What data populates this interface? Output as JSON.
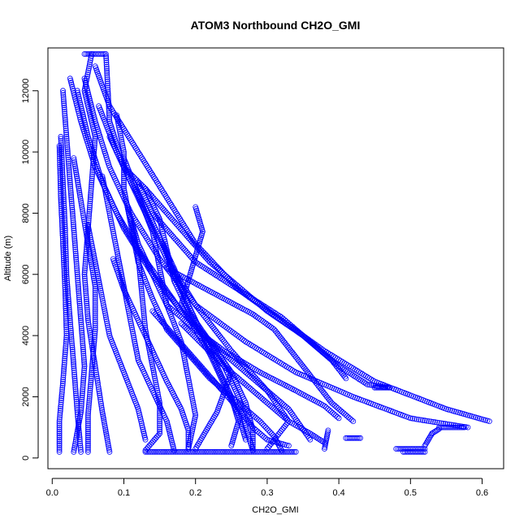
{
  "chart_data": {
    "type": "scatter",
    "title": "ATOM3 Northbound CH2O_GMI",
    "xlabel": "CH2O_GMI",
    "ylabel": "Altitude (m)",
    "xlim": [
      -0.006,
      0.63
    ],
    "ylim": [
      -350,
      13400
    ],
    "x_ticks": [
      "0.0",
      "0.1",
      "0.2",
      "0.3",
      "0.4",
      "0.5",
      "0.6"
    ],
    "y_ticks": [
      "0",
      "2000",
      "4000",
      "6000",
      "8000",
      "10000",
      "12000"
    ],
    "marker": "open-circle",
    "point_color": "#0000ff",
    "grid": false,
    "profiles": [
      [
        [
          0.055,
          13200
        ],
        [
          0.045,
          12000
        ],
        [
          0.06,
          10500
        ],
        [
          0.055,
          9000
        ],
        [
          0.05,
          7500
        ],
        [
          0.045,
          6000
        ],
        [
          0.05,
          4500
        ],
        [
          0.06,
          3000
        ],
        [
          0.07,
          1500
        ],
        [
          0.08,
          200
        ]
      ],
      [
        [
          0.075,
          13200
        ],
        [
          0.08,
          11000
        ],
        [
          0.1,
          9500
        ],
        [
          0.13,
          8000
        ],
        [
          0.16,
          6500
        ],
        [
          0.2,
          5000
        ],
        [
          0.25,
          3500
        ],
        [
          0.3,
          2200
        ],
        [
          0.33,
          1200
        ],
        [
          0.3,
          300
        ]
      ],
      [
        [
          0.06,
          12800
        ],
        [
          0.08,
          11500
        ],
        [
          0.12,
          10000
        ],
        [
          0.16,
          8500
        ],
        [
          0.2,
          7000
        ],
        [
          0.26,
          5500
        ],
        [
          0.32,
          4500
        ],
        [
          0.38,
          3500
        ],
        [
          0.45,
          2500
        ],
        [
          0.55,
          1600
        ],
        [
          0.61,
          1200
        ]
      ],
      [
        [
          0.045,
          12400
        ],
        [
          0.06,
          11000
        ],
        [
          0.08,
          9500
        ],
        [
          0.11,
          8000
        ],
        [
          0.15,
          6500
        ],
        [
          0.2,
          5000
        ],
        [
          0.27,
          3800
        ],
        [
          0.34,
          2800
        ],
        [
          0.42,
          2000
        ],
        [
          0.5,
          1300
        ],
        [
          0.58,
          1000
        ]
      ],
      [
        [
          0.035,
          12000
        ],
        [
          0.05,
          10500
        ],
        [
          0.07,
          9000
        ],
        [
          0.1,
          7500
        ],
        [
          0.14,
          6000
        ],
        [
          0.18,
          4800
        ],
        [
          0.23,
          3600
        ],
        [
          0.28,
          2600
        ],
        [
          0.33,
          1600
        ],
        [
          0.36,
          600
        ]
      ],
      [
        [
          0.015,
          12000
        ],
        [
          0.02,
          10500
        ],
        [
          0.025,
          9000
        ],
        [
          0.03,
          7500
        ],
        [
          0.035,
          6000
        ],
        [
          0.04,
          4500
        ],
        [
          0.045,
          3000
        ],
        [
          0.04,
          1500
        ],
        [
          0.03,
          200
        ]
      ],
      [
        [
          0.012,
          10500
        ],
        [
          0.015,
          9000
        ],
        [
          0.018,
          7500
        ],
        [
          0.02,
          6000
        ],
        [
          0.025,
          4500
        ],
        [
          0.03,
          3000
        ],
        [
          0.035,
          1500
        ],
        [
          0.04,
          200
        ]
      ],
      [
        [
          0.01,
          10200
        ],
        [
          0.012,
          8500
        ],
        [
          0.015,
          7000
        ],
        [
          0.018,
          5500
        ],
        [
          0.02,
          4000
        ],
        [
          0.015,
          2500
        ],
        [
          0.01,
          1200
        ],
        [
          0.01,
          200
        ]
      ],
      [
        [
          0.025,
          12400
        ],
        [
          0.04,
          11000
        ],
        [
          0.06,
          9500
        ],
        [
          0.09,
          8000
        ],
        [
          0.12,
          6800
        ],
        [
          0.15,
          5800
        ],
        [
          0.18,
          4800
        ],
        [
          0.22,
          3800
        ],
        [
          0.25,
          2800
        ],
        [
          0.23,
          1500
        ],
        [
          0.2,
          300
        ]
      ],
      [
        [
          0.065,
          11500
        ],
        [
          0.09,
          10000
        ],
        [
          0.11,
          9000
        ],
        [
          0.13,
          8200
        ],
        [
          0.15,
          7200
        ],
        [
          0.17,
          6200
        ],
        [
          0.19,
          5000
        ],
        [
          0.21,
          4000
        ],
        [
          0.24,
          3000
        ],
        [
          0.26,
          2000
        ],
        [
          0.27,
          1000
        ],
        [
          0.28,
          250
        ]
      ],
      [
        [
          0.08,
          10500
        ],
        [
          0.1,
          9500
        ],
        [
          0.13,
          8800
        ],
        [
          0.16,
          8000
        ],
        [
          0.19,
          7200
        ],
        [
          0.22,
          6400
        ],
        [
          0.26,
          5600
        ],
        [
          0.3,
          4800
        ],
        [
          0.35,
          4000
        ],
        [
          0.39,
          3200
        ],
        [
          0.41,
          2600
        ]
      ],
      [
        [
          0.1,
          9800
        ],
        [
          0.12,
          8600
        ],
        [
          0.14,
          7400
        ],
        [
          0.15,
          6200
        ],
        [
          0.16,
          5000
        ],
        [
          0.18,
          3800
        ],
        [
          0.19,
          2600
        ],
        [
          0.2,
          1400
        ],
        [
          0.19,
          300
        ]
      ],
      [
        [
          0.12,
          9000
        ],
        [
          0.14,
          8000
        ],
        [
          0.17,
          7200
        ],
        [
          0.2,
          6400
        ],
        [
          0.24,
          5800
        ],
        [
          0.28,
          5200
        ],
        [
          0.32,
          4600
        ],
        [
          0.36,
          3800
        ],
        [
          0.4,
          3000
        ],
        [
          0.44,
          2400
        ],
        [
          0.47,
          2300
        ]
      ],
      [
        [
          0.13,
          8800
        ],
        [
          0.15,
          7800
        ],
        [
          0.16,
          6800
        ],
        [
          0.17,
          5800
        ],
        [
          0.19,
          4800
        ],
        [
          0.22,
          3800
        ],
        [
          0.25,
          2800
        ],
        [
          0.27,
          1800
        ],
        [
          0.28,
          900
        ],
        [
          0.28,
          250
        ]
      ],
      [
        [
          0.07,
          9200
        ],
        [
          0.08,
          8000
        ],
        [
          0.09,
          6800
        ],
        [
          0.1,
          5600
        ],
        [
          0.11,
          4400
        ],
        [
          0.12,
          3200
        ],
        [
          0.14,
          2200
        ],
        [
          0.16,
          1200
        ],
        [
          0.17,
          250
        ]
      ],
      [
        [
          0.03,
          9800
        ],
        [
          0.04,
          8400
        ],
        [
          0.05,
          7000
        ],
        [
          0.06,
          5600
        ],
        [
          0.06,
          4200
        ],
        [
          0.055,
          2800
        ],
        [
          0.05,
          1400
        ],
        [
          0.05,
          200
        ]
      ],
      [
        [
          0.09,
          11200
        ],
        [
          0.1,
          10000
        ],
        [
          0.1,
          8800
        ],
        [
          0.11,
          7600
        ],
        [
          0.12,
          6400
        ],
        [
          0.14,
          5200
        ],
        [
          0.16,
          4200
        ],
        [
          0.19,
          3400
        ],
        [
          0.22,
          2600
        ],
        [
          0.26,
          1800
        ],
        [
          0.29,
          1200
        ],
        [
          0.31,
          700
        ],
        [
          0.32,
          250
        ]
      ],
      [
        [
          0.105,
          8200
        ],
        [
          0.12,
          7000
        ],
        [
          0.14,
          6000
        ],
        [
          0.16,
          5000
        ],
        [
          0.2,
          4200
        ],
        [
          0.24,
          3500
        ],
        [
          0.29,
          2800
        ],
        [
          0.34,
          2200
        ],
        [
          0.38,
          1700
        ],
        [
          0.4,
          1300
        ]
      ],
      [
        [
          0.11,
          7800
        ],
        [
          0.12,
          6600
        ],
        [
          0.125,
          5400
        ],
        [
          0.13,
          4200
        ],
        [
          0.14,
          3000
        ],
        [
          0.15,
          1800
        ],
        [
          0.15,
          800
        ],
        [
          0.13,
          250
        ]
      ],
      [
        [
          0.155,
          7000
        ],
        [
          0.17,
          6000
        ],
        [
          0.19,
          5000
        ],
        [
          0.21,
          4000
        ],
        [
          0.23,
          3000
        ],
        [
          0.25,
          2000
        ],
        [
          0.26,
          1200
        ],
        [
          0.25,
          400
        ]
      ],
      [
        [
          0.2,
          8200
        ],
        [
          0.21,
          7400
        ],
        [
          0.2,
          6600
        ],
        [
          0.19,
          5800
        ],
        [
          0.18,
          5000
        ],
        [
          0.2,
          4200
        ],
        [
          0.22,
          3400
        ],
        [
          0.24,
          2400
        ],
        [
          0.26,
          1400
        ],
        [
          0.27,
          600
        ]
      ],
      [
        [
          0.16,
          6200
        ],
        [
          0.2,
          5700
        ],
        [
          0.24,
          5200
        ],
        [
          0.28,
          4700
        ],
        [
          0.31,
          4200
        ],
        [
          0.33,
          3600
        ],
        [
          0.35,
          3000
        ],
        [
          0.37,
          2400
        ],
        [
          0.39,
          1800
        ],
        [
          0.42,
          1200
        ]
      ],
      [
        [
          0.05,
          7600
        ],
        [
          0.06,
          6400
        ],
        [
          0.07,
          5200
        ],
        [
          0.08,
          4000
        ],
        [
          0.1,
          2800
        ],
        [
          0.12,
          1600
        ],
        [
          0.13,
          600
        ]
      ],
      [
        [
          0.085,
          6500
        ],
        [
          0.1,
          5500
        ],
        [
          0.12,
          4500
        ],
        [
          0.14,
          3500
        ],
        [
          0.16,
          2500
        ],
        [
          0.18,
          1600
        ],
        [
          0.19,
          900
        ],
        [
          0.19,
          300
        ]
      ],
      [
        [
          0.14,
          4800
        ],
        [
          0.17,
          4000
        ],
        [
          0.2,
          3200
        ],
        [
          0.23,
          2400
        ],
        [
          0.26,
          1600
        ],
        [
          0.28,
          1000
        ],
        [
          0.3,
          600
        ],
        [
          0.33,
          400
        ]
      ],
      [
        [
          0.18,
          4400
        ],
        [
          0.21,
          3700
        ],
        [
          0.24,
          3000
        ],
        [
          0.27,
          2400
        ],
        [
          0.3,
          1800
        ],
        [
          0.33,
          1200
        ],
        [
          0.36,
          800
        ],
        [
          0.38,
          500
        ]
      ]
    ],
    "segments": [
      [
        [
          0.045,
          13200
        ],
        [
          0.073,
          13200
        ]
      ],
      [
        [
          0.13,
          200
        ],
        [
          0.34,
          200
        ]
      ],
      [
        [
          0.38,
          300
        ],
        [
          0.385,
          900
        ]
      ],
      [
        [
          0.41,
          650
        ],
        [
          0.43,
          650
        ]
      ],
      [
        [
          0.45,
          2300
        ],
        [
          0.47,
          2300
        ]
      ],
      [
        [
          0.48,
          300
        ],
        [
          0.52,
          300
        ]
      ],
      [
        [
          0.49,
          200
        ],
        [
          0.52,
          200
        ]
      ],
      [
        [
          0.52,
          400
        ],
        [
          0.53,
          800
        ]
      ],
      [
        [
          0.53,
          800
        ],
        [
          0.54,
          950
        ]
      ],
      [
        [
          0.54,
          1000
        ],
        [
          0.575,
          1000
        ]
      ]
    ]
  }
}
